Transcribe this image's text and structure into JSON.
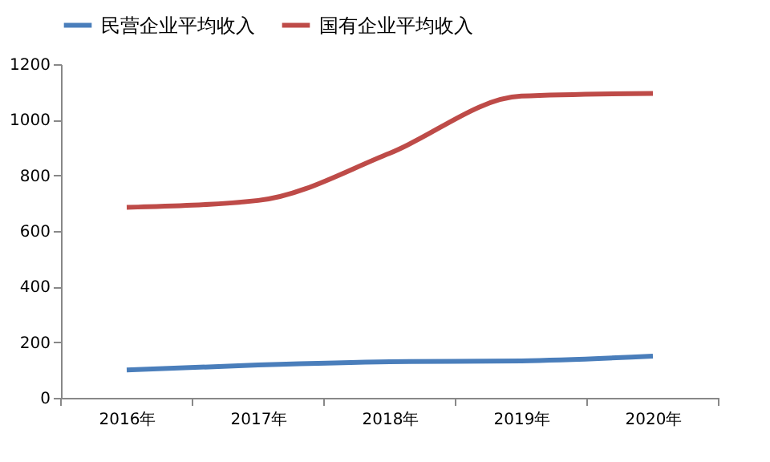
{
  "chart_data": {
    "type": "line",
    "categories": [
      "2016年",
      "2017年",
      "2018年",
      "2019年",
      "2020年"
    ],
    "series": [
      {
        "name": "民营企业平均收入",
        "color": "#4a7ebb",
        "values": [
          100,
          118,
          130,
          133,
          150
        ]
      },
      {
        "name": "国有企业平均收入",
        "color": "#be4b48",
        "values": [
          685,
          710,
          880,
          1085,
          1095
        ]
      }
    ],
    "ylim": [
      0,
      1200
    ],
    "yticks": [
      0,
      200,
      400,
      600,
      800,
      1000,
      1200
    ],
    "grid": false,
    "legend": "top",
    "line_style": "solid",
    "marker": "none"
  }
}
